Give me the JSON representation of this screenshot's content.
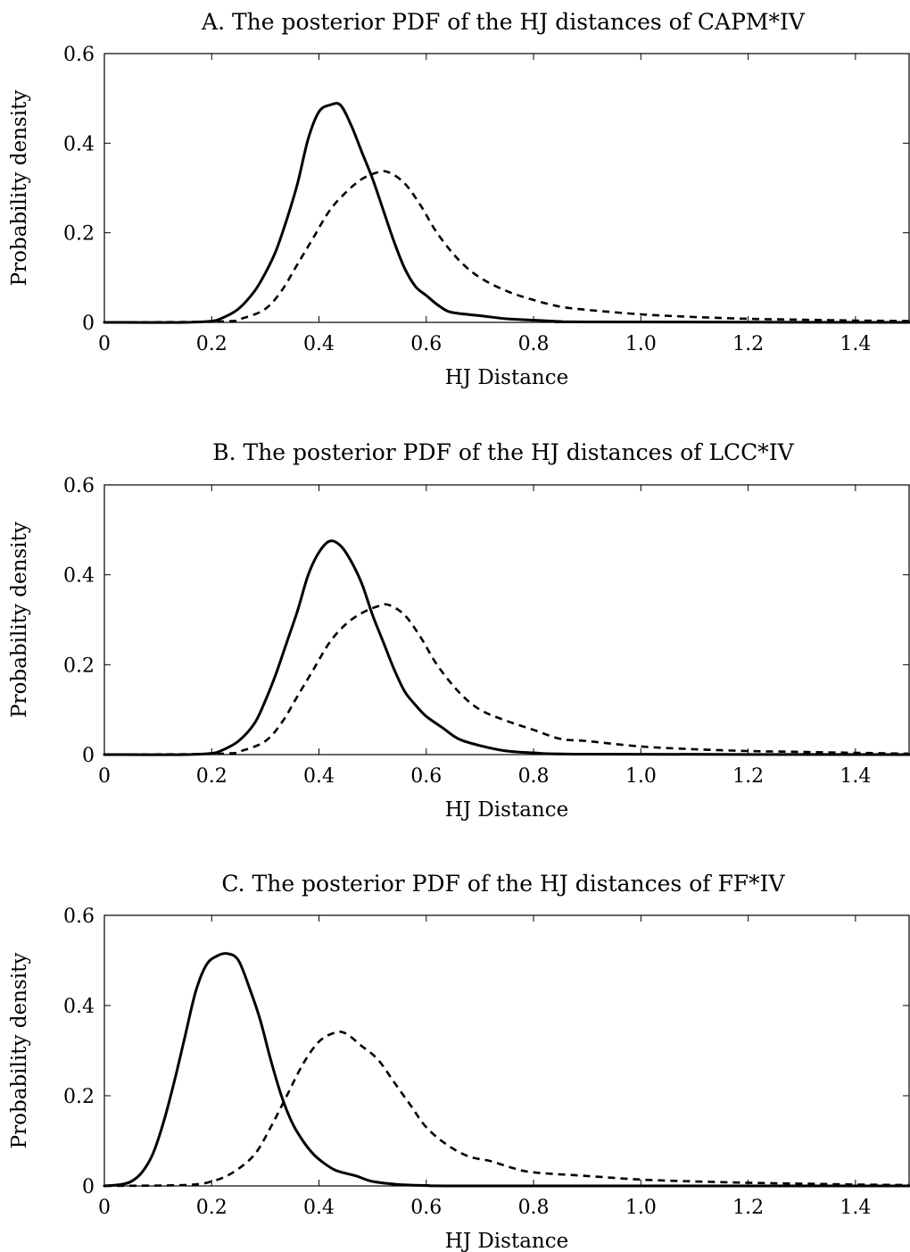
{
  "chart_data": [
    {
      "type": "line",
      "title": "A. The posterior PDF of the HJ distances of CAPM*IV",
      "xlabel": "HJ Distance",
      "ylabel": "Probability density",
      "xlim": [
        0,
        1.5
      ],
      "ylim": [
        0,
        0.6
      ],
      "xticks": [
        "0",
        "0.2",
        "0.4",
        "0.6",
        "0.8",
        "1.0",
        "1.2",
        "1.4"
      ],
      "yticks": [
        "0",
        "0.2",
        "0.4",
        "0.6"
      ],
      "grid": false,
      "series": [
        {
          "style": "solid",
          "x": [
            0,
            0.15,
            0.2,
            0.22,
            0.25,
            0.28,
            0.3,
            0.32,
            0.34,
            0.36,
            0.38,
            0.4,
            0.42,
            0.44,
            0.46,
            0.48,
            0.5,
            0.52,
            0.54,
            0.56,
            0.58,
            0.6,
            0.62,
            0.64,
            0.66,
            0.7,
            0.75,
            0.8,
            0.85,
            0.9,
            1.5
          ],
          "y": [
            0,
            0,
            0.003,
            0.01,
            0.03,
            0.07,
            0.11,
            0.16,
            0.23,
            0.31,
            0.41,
            0.47,
            0.485,
            0.485,
            0.44,
            0.38,
            0.32,
            0.25,
            0.18,
            0.12,
            0.08,
            0.06,
            0.04,
            0.025,
            0.02,
            0.015,
            0.008,
            0.005,
            0.002,
            0.001,
            0
          ]
        },
        {
          "style": "dashed",
          "x": [
            0,
            0.22,
            0.26,
            0.3,
            0.33,
            0.36,
            0.39,
            0.42,
            0.45,
            0.48,
            0.51,
            0.53,
            0.56,
            0.59,
            0.62,
            0.66,
            0.7,
            0.75,
            0.8,
            0.85,
            0.9,
            1.0,
            1.1,
            1.2,
            1.3,
            1.4,
            1.5
          ],
          "y": [
            0,
            0.002,
            0.01,
            0.03,
            0.07,
            0.13,
            0.19,
            0.25,
            0.29,
            0.32,
            0.335,
            0.335,
            0.31,
            0.26,
            0.2,
            0.14,
            0.1,
            0.07,
            0.05,
            0.035,
            0.028,
            0.018,
            0.012,
            0.008,
            0.006,
            0.004,
            0.003
          ]
        }
      ]
    },
    {
      "type": "line",
      "title": "B. The posterior PDF of the HJ distances of LCC*IV",
      "xlabel": "HJ Distance",
      "ylabel": "Probability density",
      "xlim": [
        0,
        1.5
      ],
      "ylim": [
        0,
        0.6
      ],
      "xticks": [
        "0",
        "0.2",
        "0.4",
        "0.6",
        "0.8",
        "1.0",
        "1.2",
        "1.4"
      ],
      "yticks": [
        "0",
        "0.2",
        "0.4",
        "0.6"
      ],
      "grid": false,
      "series": [
        {
          "style": "solid",
          "x": [
            0,
            0.15,
            0.2,
            0.22,
            0.25,
            0.28,
            0.3,
            0.32,
            0.34,
            0.36,
            0.38,
            0.4,
            0.42,
            0.44,
            0.46,
            0.48,
            0.5,
            0.52,
            0.54,
            0.56,
            0.58,
            0.6,
            0.63,
            0.66,
            0.7,
            0.75,
            0.8,
            0.9,
            1.5
          ],
          "y": [
            0,
            0,
            0.003,
            0.01,
            0.03,
            0.07,
            0.12,
            0.18,
            0.25,
            0.32,
            0.4,
            0.45,
            0.475,
            0.465,
            0.43,
            0.38,
            0.31,
            0.25,
            0.19,
            0.14,
            0.11,
            0.085,
            0.06,
            0.035,
            0.02,
            0.008,
            0.004,
            0.001,
            0
          ]
        },
        {
          "style": "dashed",
          "x": [
            0,
            0.22,
            0.26,
            0.3,
            0.33,
            0.36,
            0.39,
            0.42,
            0.45,
            0.48,
            0.51,
            0.53,
            0.56,
            0.59,
            0.62,
            0.66,
            0.7,
            0.75,
            0.8,
            0.85,
            0.9,
            1.0,
            1.1,
            1.2,
            1.3,
            1.4,
            1.5
          ],
          "y": [
            0,
            0.002,
            0.01,
            0.03,
            0.07,
            0.13,
            0.19,
            0.25,
            0.29,
            0.315,
            0.33,
            0.333,
            0.31,
            0.26,
            0.2,
            0.14,
            0.1,
            0.075,
            0.055,
            0.035,
            0.03,
            0.018,
            0.012,
            0.008,
            0.006,
            0.004,
            0.002
          ]
        }
      ]
    },
    {
      "type": "line",
      "title": "C. The posterior PDF of the HJ distances of FF*IV",
      "xlabel": "HJ Distance",
      "ylabel": "Probability density",
      "xlim": [
        0,
        1.5
      ],
      "ylim": [
        0,
        0.6
      ],
      "xticks": [
        "0",
        "0.2",
        "0.4",
        "0.6",
        "0.8",
        "1.0",
        "1.2",
        "1.4"
      ],
      "yticks": [
        "0",
        "0.2",
        "0.4",
        "0.6"
      ],
      "grid": false,
      "series": [
        {
          "style": "solid",
          "x": [
            0,
            0.03,
            0.05,
            0.07,
            0.09,
            0.11,
            0.13,
            0.15,
            0.17,
            0.19,
            0.21,
            0.23,
            0.25,
            0.27,
            0.29,
            0.31,
            0.33,
            0.35,
            0.37,
            0.39,
            0.41,
            0.43,
            0.45,
            0.47,
            0.5,
            0.55,
            0.6,
            0.7,
            1.5
          ],
          "y": [
            0,
            0.003,
            0.01,
            0.03,
            0.07,
            0.14,
            0.23,
            0.33,
            0.43,
            0.49,
            0.51,
            0.515,
            0.5,
            0.44,
            0.37,
            0.28,
            0.2,
            0.14,
            0.1,
            0.07,
            0.05,
            0.035,
            0.028,
            0.022,
            0.01,
            0.003,
            0.001,
            0,
            0
          ]
        },
        {
          "style": "dashed",
          "x": [
            0,
            0.15,
            0.2,
            0.24,
            0.28,
            0.31,
            0.34,
            0.37,
            0.4,
            0.43,
            0.45,
            0.48,
            0.51,
            0.54,
            0.57,
            0.6,
            0.64,
            0.68,
            0.72,
            0.76,
            0.8,
            0.9,
            1.0,
            1.1,
            1.2,
            1.3,
            1.4,
            1.5
          ],
          "y": [
            0,
            0.002,
            0.01,
            0.03,
            0.07,
            0.13,
            0.2,
            0.27,
            0.32,
            0.34,
            0.338,
            0.31,
            0.28,
            0.23,
            0.18,
            0.13,
            0.09,
            0.065,
            0.055,
            0.04,
            0.03,
            0.022,
            0.014,
            0.01,
            0.007,
            0.005,
            0.003,
            0.002
          ]
        }
      ]
    }
  ]
}
